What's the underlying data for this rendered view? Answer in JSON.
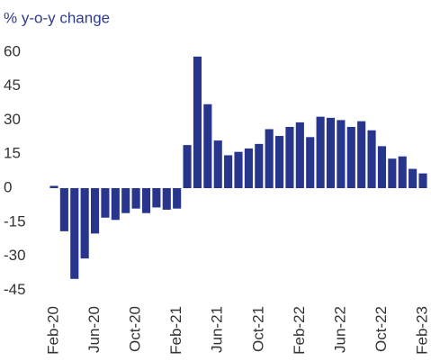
{
  "chart_data": {
    "type": "bar",
    "title": "% y-o-y change",
    "categories": [
      "Feb-20",
      null,
      null,
      null,
      "Jun-20",
      null,
      null,
      null,
      "Oct-20",
      null,
      null,
      null,
      "Feb-21",
      null,
      null,
      null,
      "Jun-21",
      null,
      null,
      null,
      "Oct-21",
      null,
      null,
      null,
      "Feb-22",
      null,
      null,
      null,
      "Jun-22",
      null,
      null,
      null,
      "Oct-22",
      null,
      null,
      null,
      "Feb-23"
    ],
    "values": [
      1,
      -19,
      -40,
      -31,
      -20,
      -13,
      -14,
      -11,
      -9,
      -11,
      -8.5,
      -9.5,
      -9,
      19,
      58,
      37,
      21,
      14.5,
      16,
      17.5,
      19.5,
      26,
      23,
      27,
      29,
      22.5,
      31.5,
      31,
      30,
      27,
      29.5,
      25.5,
      18.5,
      13,
      14,
      8.5,
      6.5
    ],
    "color": "#27358c",
    "ylim": [
      -47,
      63
    ],
    "yticks": [
      -45,
      -30,
      -15,
      0,
      15,
      30,
      45,
      60
    ],
    "grid": false
  }
}
